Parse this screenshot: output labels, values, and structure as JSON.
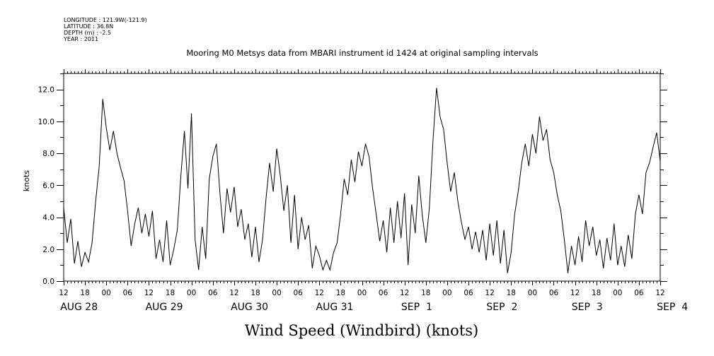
{
  "metadata": [
    "LONGITUDE : 121.9W(-121.9)",
    "LATITUDE : 36.8N",
    "DEPTH (m) : -2.5",
    "YEAR : 2011"
  ],
  "chart_data": {
    "type": "line",
    "title": "Mooring M0 Metsys data from MBARI instrument id 1424 at original sampling intervals",
    "xlabel": "Wind Speed (Windbird) (knots)",
    "ylabel": "knots",
    "ylim": [
      0,
      13
    ],
    "yticks": [
      "0.0",
      "2.0",
      "4.0",
      "6.0",
      "8.0",
      "10.0",
      "12.0"
    ],
    "xlim": [
      "2011-08-28 12:00",
      "2011-09-04 12:00"
    ],
    "hour_tick_labels": [
      "12",
      "18",
      "00",
      "06",
      "12",
      "18",
      "00",
      "06",
      "12",
      "18",
      "00",
      "06",
      "12",
      "18",
      "00",
      "06",
      "12",
      "18",
      "00",
      "06",
      "12",
      "18",
      "00",
      "06",
      "12",
      "18",
      "00",
      "06",
      "12"
    ],
    "date_labels": [
      "AUG 28",
      "AUG 29",
      "AUG 30",
      "AUG 31",
      "SEP  1",
      "SEP  2",
      "SEP  3",
      "SEP  4"
    ],
    "grid": false,
    "series": [
      {
        "color": "#000000",
        "points": [
          [
            "2011-08-28 12:00",
            4.6
          ],
          [
            "2011-08-28 13:00",
            2.4
          ],
          [
            "2011-08-28 14:00",
            3.9
          ],
          [
            "2011-08-28 15:00",
            1.1
          ],
          [
            "2011-08-28 16:00",
            2.5
          ],
          [
            "2011-08-28 17:00",
            0.9
          ],
          [
            "2011-08-28 18:00",
            1.8
          ],
          [
            "2011-08-28 19:00",
            1.2
          ],
          [
            "2011-08-28 20:00",
            2.4
          ],
          [
            "2011-08-28 21:00",
            5.0
          ],
          [
            "2011-08-28 22:00",
            7.2
          ],
          [
            "2011-08-28 23:00",
            11.4
          ],
          [
            "2011-08-29 00:00",
            9.6
          ],
          [
            "2011-08-29 01:00",
            8.2
          ],
          [
            "2011-08-29 02:00",
            9.4
          ],
          [
            "2011-08-29 03:00",
            8.0
          ],
          [
            "2011-08-29 04:00",
            7.1
          ],
          [
            "2011-08-29 05:00",
            6.3
          ],
          [
            "2011-08-29 06:00",
            4.4
          ],
          [
            "2011-08-29 07:00",
            2.2
          ],
          [
            "2011-08-29 08:00",
            3.6
          ],
          [
            "2011-08-29 09:00",
            4.6
          ],
          [
            "2011-08-29 10:00",
            3.0
          ],
          [
            "2011-08-29 11:00",
            4.2
          ],
          [
            "2011-08-29 12:00",
            2.8
          ],
          [
            "2011-08-29 13:00",
            4.4
          ],
          [
            "2011-08-29 14:00",
            1.4
          ],
          [
            "2011-08-29 15:00",
            2.6
          ],
          [
            "2011-08-29 16:00",
            1.2
          ],
          [
            "2011-08-29 17:00",
            3.8
          ],
          [
            "2011-08-29 18:00",
            1.0
          ],
          [
            "2011-08-29 19:00",
            2.0
          ],
          [
            "2011-08-29 20:00",
            3.2
          ],
          [
            "2011-08-29 21:00",
            6.6
          ],
          [
            "2011-08-29 22:00",
            9.4
          ],
          [
            "2011-08-29 23:00",
            5.8
          ],
          [
            "2011-08-30 00:00",
            10.5
          ],
          [
            "2011-08-30 01:00",
            2.6
          ],
          [
            "2011-08-30 02:00",
            0.7
          ],
          [
            "2011-08-30 03:00",
            3.4
          ],
          [
            "2011-08-30 04:00",
            1.4
          ],
          [
            "2011-08-30 05:00",
            6.4
          ],
          [
            "2011-08-30 06:00",
            7.8
          ],
          [
            "2011-08-30 07:00",
            8.6
          ],
          [
            "2011-08-30 08:00",
            5.5
          ],
          [
            "2011-08-30 09:00",
            3.0
          ],
          [
            "2011-08-30 10:00",
            5.8
          ],
          [
            "2011-08-30 11:00",
            4.3
          ],
          [
            "2011-08-30 12:00",
            5.9
          ],
          [
            "2011-08-30 13:00",
            3.4
          ],
          [
            "2011-08-30 14:00",
            4.5
          ],
          [
            "2011-08-30 15:00",
            2.6
          ],
          [
            "2011-08-30 16:00",
            3.6
          ],
          [
            "2011-08-30 17:00",
            1.5
          ],
          [
            "2011-08-30 18:00",
            3.4
          ],
          [
            "2011-08-30 19:00",
            1.2
          ],
          [
            "2011-08-30 20:00",
            2.6
          ],
          [
            "2011-08-30 21:00",
            5.2
          ],
          [
            "2011-08-30 22:00",
            7.4
          ],
          [
            "2011-08-30 23:00",
            5.6
          ],
          [
            "2011-08-31 00:00",
            8.3
          ],
          [
            "2011-08-31 01:00",
            6.6
          ],
          [
            "2011-08-31 02:00",
            4.4
          ],
          [
            "2011-08-31 03:00",
            6.0
          ],
          [
            "2011-08-31 04:00",
            2.4
          ],
          [
            "2011-08-31 05:00",
            5.4
          ],
          [
            "2011-08-31 06:00",
            2.0
          ],
          [
            "2011-08-31 07:00",
            4.0
          ],
          [
            "2011-08-31 08:00",
            2.6
          ],
          [
            "2011-08-31 09:00",
            3.5
          ],
          [
            "2011-08-31 10:00",
            0.8
          ],
          [
            "2011-08-31 11:00",
            2.2
          ],
          [
            "2011-08-31 12:00",
            1.6
          ],
          [
            "2011-08-31 13:00",
            0.7
          ],
          [
            "2011-08-31 14:00",
            1.3
          ],
          [
            "2011-08-31 15:00",
            0.7
          ],
          [
            "2011-08-31 16:00",
            1.8
          ],
          [
            "2011-08-31 17:00",
            2.4
          ],
          [
            "2011-08-31 18:00",
            4.2
          ],
          [
            "2011-08-31 19:00",
            6.4
          ],
          [
            "2011-08-31 20:00",
            5.4
          ],
          [
            "2011-08-31 21:00",
            7.6
          ],
          [
            "2011-08-31 22:00",
            6.2
          ],
          [
            "2011-08-31 23:00",
            8.1
          ],
          [
            "2011-09-01 00:00",
            7.2
          ],
          [
            "2011-09-01 01:00",
            8.6
          ],
          [
            "2011-09-01 02:00",
            7.8
          ],
          [
            "2011-09-01 03:00",
            5.8
          ],
          [
            "2011-09-01 04:00",
            4.2
          ],
          [
            "2011-09-01 05:00",
            2.5
          ],
          [
            "2011-09-01 06:00",
            3.8
          ],
          [
            "2011-09-01 07:00",
            1.8
          ],
          [
            "2011-09-01 08:00",
            4.6
          ],
          [
            "2011-09-01 09:00",
            2.4
          ],
          [
            "2011-09-01 10:00",
            5.0
          ],
          [
            "2011-09-01 11:00",
            2.7
          ],
          [
            "2011-09-01 12:00",
            5.5
          ],
          [
            "2011-09-01 13:00",
            1.0
          ],
          [
            "2011-09-01 14:00",
            4.8
          ],
          [
            "2011-09-01 15:00",
            3.0
          ],
          [
            "2011-09-01 16:00",
            6.6
          ],
          [
            "2011-09-01 17:00",
            4.1
          ],
          [
            "2011-09-01 18:00",
            2.4
          ],
          [
            "2011-09-01 19:00",
            4.6
          ],
          [
            "2011-09-01 20:00",
            8.8
          ],
          [
            "2011-09-01 21:00",
            12.1
          ],
          [
            "2011-09-01 22:00",
            10.3
          ],
          [
            "2011-09-01 23:00",
            9.5
          ],
          [
            "2011-09-02 00:00",
            7.4
          ],
          [
            "2011-09-02 01:00",
            5.6
          ],
          [
            "2011-09-02 02:00",
            6.8
          ],
          [
            "2011-09-02 03:00",
            5.0
          ],
          [
            "2011-09-02 04:00",
            3.7
          ],
          [
            "2011-09-02 05:00",
            2.6
          ],
          [
            "2011-09-02 06:00",
            3.4
          ],
          [
            "2011-09-02 07:00",
            2.0
          ],
          [
            "2011-09-02 08:00",
            3.1
          ],
          [
            "2011-09-02 09:00",
            1.8
          ],
          [
            "2011-09-02 10:00",
            3.2
          ],
          [
            "2011-09-02 11:00",
            1.3
          ],
          [
            "2011-09-02 12:00",
            3.6
          ],
          [
            "2011-09-02 13:00",
            1.6
          ],
          [
            "2011-09-02 14:00",
            3.8
          ],
          [
            "2011-09-02 15:00",
            1.1
          ],
          [
            "2011-09-02 16:00",
            3.2
          ],
          [
            "2011-09-02 17:00",
            0.5
          ],
          [
            "2011-09-02 18:00",
            1.8
          ],
          [
            "2011-09-02 19:00",
            4.2
          ],
          [
            "2011-09-02 20:00",
            5.6
          ],
          [
            "2011-09-02 21:00",
            7.4
          ],
          [
            "2011-09-02 22:00",
            8.6
          ],
          [
            "2011-09-02 23:00",
            7.2
          ],
          [
            "2011-09-03 00:00",
            9.2
          ],
          [
            "2011-09-03 01:00",
            8.0
          ],
          [
            "2011-09-03 02:00",
            10.3
          ],
          [
            "2011-09-03 03:00",
            8.8
          ],
          [
            "2011-09-03 04:00",
            9.5
          ],
          [
            "2011-09-03 05:00",
            7.6
          ],
          [
            "2011-09-03 06:00",
            6.8
          ],
          [
            "2011-09-03 07:00",
            5.4
          ],
          [
            "2011-09-03 08:00",
            4.4
          ],
          [
            "2011-09-03 09:00",
            2.6
          ],
          [
            "2011-09-03 10:00",
            0.5
          ],
          [
            "2011-09-03 11:00",
            2.2
          ],
          [
            "2011-09-03 12:00",
            1.0
          ],
          [
            "2011-09-03 13:00",
            2.8
          ],
          [
            "2011-09-03 14:00",
            1.2
          ],
          [
            "2011-09-03 15:00",
            3.8
          ],
          [
            "2011-09-03 16:00",
            2.2
          ],
          [
            "2011-09-03 17:00",
            3.4
          ],
          [
            "2011-09-03 18:00",
            1.6
          ],
          [
            "2011-09-03 19:00",
            2.6
          ],
          [
            "2011-09-03 20:00",
            0.8
          ],
          [
            "2011-09-03 21:00",
            2.7
          ],
          [
            "2011-09-03 22:00",
            1.3
          ],
          [
            "2011-09-03 23:00",
            3.6
          ],
          [
            "2011-09-04 00:00",
            1.0
          ],
          [
            "2011-09-04 01:00",
            2.2
          ],
          [
            "2011-09-04 02:00",
            0.9
          ],
          [
            "2011-09-04 03:00",
            2.9
          ],
          [
            "2011-09-04 04:00",
            1.4
          ],
          [
            "2011-09-04 05:00",
            4.2
          ],
          [
            "2011-09-04 06:00",
            5.4
          ],
          [
            "2011-09-04 07:00",
            4.2
          ],
          [
            "2011-09-04 08:00",
            6.8
          ],
          [
            "2011-09-04 09:00",
            7.4
          ],
          [
            "2011-09-04 10:00",
            8.4
          ],
          [
            "2011-09-04 11:00",
            9.3
          ],
          [
            "2011-09-04 12:00",
            7.5
          ]
        ]
      }
    ]
  }
}
